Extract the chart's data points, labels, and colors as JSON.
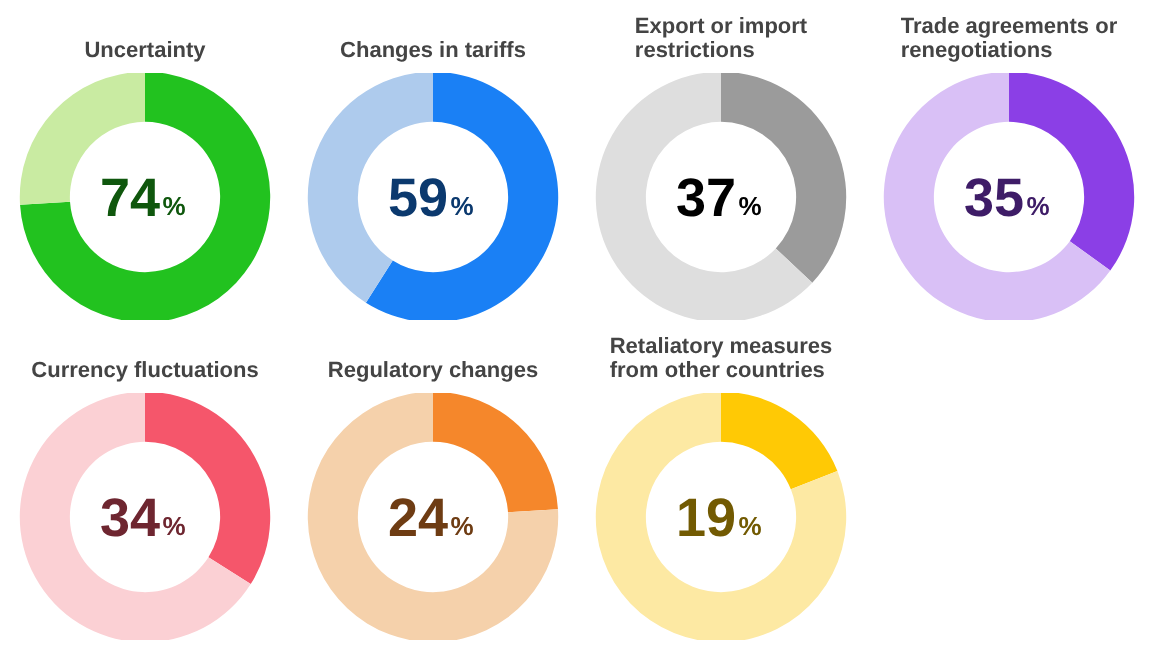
{
  "chart_data": [
    {
      "type": "donut",
      "title": "Uncertainty",
      "categories": [
        null,
        null
      ],
      "values": [
        74,
        26
      ],
      "colors": [
        "#22c21f",
        "#c9eba2"
      ],
      "annotations": [
        "74%"
      ]
    },
    {
      "type": "donut",
      "title": "Changes in tariffs",
      "categories": [
        null,
        null
      ],
      "values": [
        59,
        41
      ],
      "colors": [
        "#1a80f5",
        "#aecbed"
      ],
      "annotations": [
        "59%"
      ]
    },
    {
      "type": "donut",
      "title": "Export or import restrictions",
      "categories": [
        null,
        null
      ],
      "values": [
        37,
        63
      ],
      "colors": [
        "#9b9b9b",
        "#dedede"
      ],
      "annotations": [
        "37%"
      ]
    },
    {
      "type": "donut",
      "title": "Trade agreements or renegotiations",
      "categories": [
        null,
        null
      ],
      "values": [
        35,
        65
      ],
      "colors": [
        "#8b3fe6",
        "#d9c0f6"
      ],
      "annotations": [
        "35%"
      ]
    },
    {
      "type": "donut",
      "title": "Currency fluctuations",
      "categories": [
        null,
        null
      ],
      "values": [
        34,
        66
      ],
      "colors": [
        "#f5566b",
        "#fbd0d4"
      ],
      "annotations": [
        "34%"
      ]
    },
    {
      "type": "donut",
      "title": "Regulatory changes",
      "categories": [
        null,
        null
      ],
      "values": [
        24,
        76
      ],
      "colors": [
        "#f5872b",
        "#f5d1ab"
      ],
      "annotations": [
        "24%"
      ]
    },
    {
      "type": "donut",
      "title": "Retaliatory measures from other countries",
      "categories": [
        null,
        null
      ],
      "values": [
        19,
        81
      ],
      "colors": [
        "#ffc905",
        "#fde9a3"
      ],
      "annotations": [
        "19%"
      ]
    }
  ]
}
